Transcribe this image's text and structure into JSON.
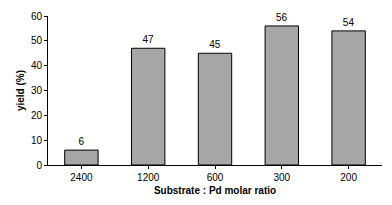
{
  "chart_data": {
    "type": "bar",
    "categories": [
      "2400",
      "1200",
      "600",
      "300",
      "200"
    ],
    "values": [
      6,
      47,
      45,
      56,
      54
    ],
    "color": "#a6a6a6",
    "xlabel": "Substrate : Pd molar ratio",
    "ylabel": "yield (%)",
    "ylim": [
      0,
      60
    ],
    "yticks": [
      0,
      10,
      20,
      30,
      40,
      50,
      60
    ],
    "grid": false,
    "data_labels": true
  }
}
